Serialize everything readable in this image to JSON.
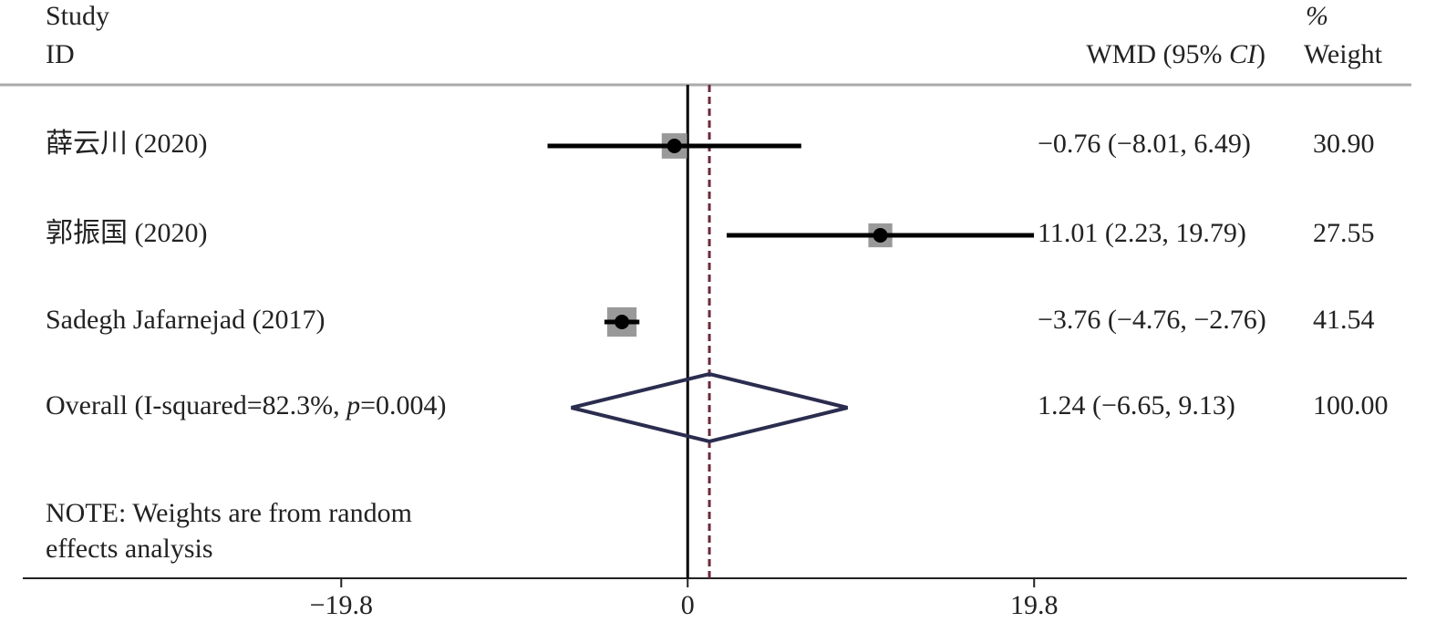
{
  "chart_data": {
    "type": "forest",
    "headers": {
      "study": "Study",
      "id": "ID",
      "effect": [
        "WMD (95% ",
        "CI",
        ")"
      ],
      "pct": "%",
      "weight": "Weight"
    },
    "studies": [
      {
        "name": "薛云川 (2020)",
        "wmd": -0.76,
        "ci": [
          -8.01,
          6.49
        ],
        "wmd_label": "−0.76 (−8.01, 6.49)",
        "weight": 30.9,
        "weight_label": "30.90"
      },
      {
        "name": "郭振国 (2020)",
        "wmd": 11.01,
        "ci": [
          2.23,
          19.79
        ],
        "wmd_label": "11.01 (2.23, 19.79)",
        "weight": 27.55
      },
      {
        "name": "Sadegh Jafarnejad (2017)",
        "wmd": -3.76,
        "ci": [
          -4.76,
          -2.76
        ],
        "wmd_label": "−3.76 (−4.76, −2.76)",
        "weight": 41.54
      }
    ],
    "overall": {
      "name": [
        "Overall (I-squared=82.3%, ",
        "p",
        "=0.004)"
      ],
      "wmd": 1.24,
      "ci": [
        -6.65,
        9.13
      ],
      "wmd_label": "1.24 (−6.65, 9.13)",
      "weight": 100,
      "weight_label": "100.00"
    },
    "note": [
      "NOTE: Weights are from random",
      "effects analysis"
    ],
    "xlim": [
      -38,
      41.1
    ],
    "xticks": [
      {
        "value": -19.8,
        "label": "−19.8"
      },
      0,
      19.8
    ],
    "colors": {
      "point": "#000000",
      "box": "#999999",
      "diamond": "#2b2d4f",
      "overall_line": "#6b2a3a",
      "rule": "#aaaaaa"
    }
  }
}
